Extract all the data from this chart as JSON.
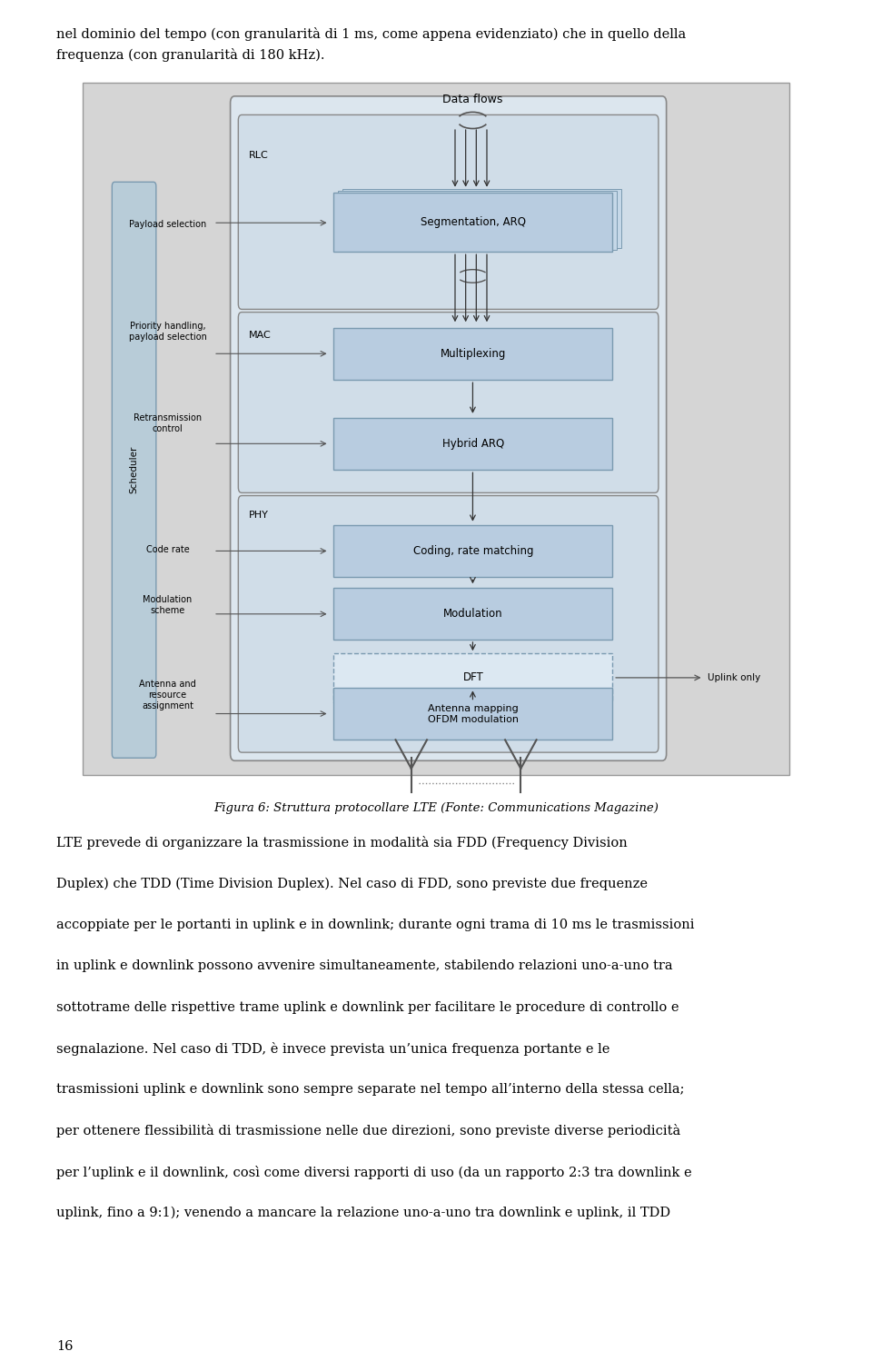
{
  "bg_color": "#ffffff",
  "page_width": 9.6,
  "page_height": 15.09,
  "top_line1": "nel dominio del tempo (con granularità di 1 ms, come appena evidenziato) che in quello della",
  "top_line2": "frequenza (con granularità di 180 kHz).",
  "figure_caption": "Figura 6: Struttura protocollare LTE (Fonte: Communications Magazine)",
  "body_text_lines": [
    "LTE prevede di organizzare la trasmissione in modalità sia FDD (Frequency Division",
    "Duplex) che TDD (Time Division Duplex). Nel caso di FDD, sono previste due frequenze",
    "accoppiate per le portanti in uplink e in downlink; durante ogni trama di 10 ms le trasmissioni",
    "in uplink e downlink possono avvenire simultaneamente, stabilendo relazioni uno-a-uno tra",
    "sottotrame delle rispettive trame uplink e downlink per facilitare le procedure di controllo e",
    "segnalazione. Nel caso di TDD, è invece prevista un’unica frequenza portante e le",
    "trasmissioni uplink e downlink sono sempre separate nel tempo all’interno della stessa cella;",
    "per ottenere flessibilità di trasmissione nelle due direzioni, sono previste diverse periodicità",
    "per l’uplink e il downlink, così come diversi rapporti di uso (da un rapporto 2:3 tra downlink e",
    "uplink, fino a 9:1); venendo a mancare la relazione uno-a-uno tra downlink e uplink, il TDD"
  ],
  "page_number": "16"
}
